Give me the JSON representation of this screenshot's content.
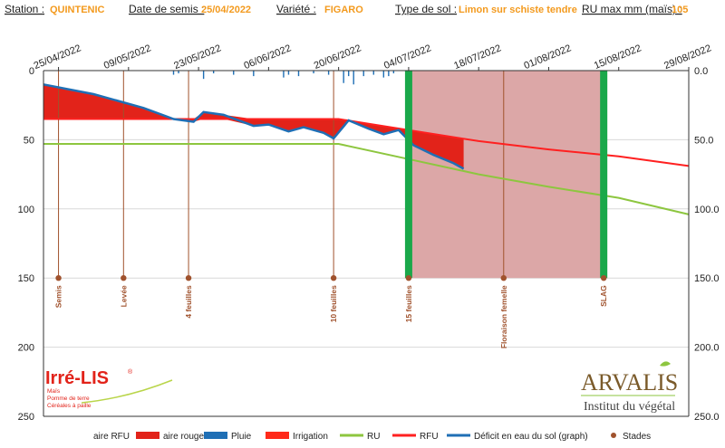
{
  "header": [
    {
      "label": "Station :",
      "value": "QUINTENIC"
    },
    {
      "label": "Date de semis :",
      "value": "25/04/2022"
    },
    {
      "label": "Variété :",
      "value": "FIGARO"
    },
    {
      "label": "Type de sol :",
      "value": "Limon sur schiste tendre"
    },
    {
      "label": "RU max mm (maïs) :",
      "value": "105"
    }
  ],
  "logos": {
    "irre_main": "Irré-LIS",
    "irre_reg": "®",
    "irre_lines": [
      "Maïs",
      "Pomme de terre",
      "Céréales à paille"
    ],
    "arvalis_main": "ARVALIS",
    "arvalis_sub": "Institut du végétal"
  },
  "chart_data": {
    "type": "line",
    "x_start": "2022-04-22",
    "x_end": "2022-08-29",
    "x_ticks": [
      "25/04/2022",
      "09/05/2022",
      "23/05/2022",
      "06/06/2022",
      "20/06/2022",
      "04/07/2022",
      "18/07/2022",
      "01/08/2022",
      "15/08/2022",
      "29/08/2022"
    ],
    "y_left_ticks": [
      "0",
      "50",
      "100",
      "150",
      "200",
      "250"
    ],
    "y_right_ticks": [
      "0.0",
      "50.0",
      "100.0",
      "150.0",
      "200.0",
      "250.0"
    ],
    "ylim": [
      0,
      250
    ],
    "y_inverted": true,
    "grid": true,
    "legend_position": "bottom",
    "colors": {
      "aire_rfu": "#ffffff",
      "aire_rouge": "#e2231a",
      "pluie": "#1f6fb5",
      "irrigation": "#ff2a1a",
      "ru": "#8dc63f",
      "rfu": "#ff2020",
      "deficit": "#1f6fb5",
      "stades": "#a0522d",
      "highlight": "#dca7a7",
      "highlight_bar": "#1aa84a"
    },
    "legend": [
      "aire RFU",
      "aire rouge",
      "Pluie",
      "Irrigation",
      "RU",
      "RFU",
      "Déficit en eau du sol (graph)",
      "Stades"
    ],
    "series": [
      {
        "name": "RU",
        "dates": [
          "2022-04-22",
          "2022-06-20",
          "2022-07-04",
          "2022-07-18",
          "2022-08-01",
          "2022-08-15",
          "2022-08-29"
        ],
        "values": [
          53,
          53,
          64,
          75,
          84,
          92,
          104
        ]
      },
      {
        "name": "RFU",
        "dates": [
          "2022-04-22",
          "2022-06-20",
          "2022-07-04",
          "2022-07-18",
          "2022-08-01",
          "2022-08-15",
          "2022-08-29"
        ],
        "values": [
          35,
          35,
          43,
          51,
          57,
          62,
          69
        ]
      },
      {
        "name": "Déficit en eau du sol (graph)",
        "dates": [
          "2022-04-22",
          "2022-05-02",
          "2022-05-12",
          "2022-05-18",
          "2022-05-22",
          "2022-05-24",
          "2022-05-28",
          "2022-06-03",
          "2022-06-06",
          "2022-06-10",
          "2022-06-13",
          "2022-06-17",
          "2022-06-19",
          "2022-06-22",
          "2022-06-26",
          "2022-06-29",
          "2022-07-02",
          "2022-07-05",
          "2022-07-09",
          "2022-07-13",
          "2022-07-15"
        ],
        "values": [
          10,
          17,
          27,
          35,
          37,
          30,
          32,
          40,
          39,
          44,
          41,
          45,
          49,
          36,
          42,
          46,
          43,
          54,
          61,
          67,
          71
        ]
      }
    ],
    "rfu_red_area_until": "2022-07-15",
    "rain": [
      {
        "date": "2022-05-18",
        "mm": 3
      },
      {
        "date": "2022-05-19",
        "mm": 2
      },
      {
        "date": "2022-05-24",
        "mm": 6
      },
      {
        "date": "2022-05-26",
        "mm": 2
      },
      {
        "date": "2022-05-30",
        "mm": 3
      },
      {
        "date": "2022-06-03",
        "mm": 4
      },
      {
        "date": "2022-06-09",
        "mm": 5
      },
      {
        "date": "2022-06-10",
        "mm": 3
      },
      {
        "date": "2022-06-12",
        "mm": 4
      },
      {
        "date": "2022-06-15",
        "mm": 2
      },
      {
        "date": "2022-06-18",
        "mm": 3
      },
      {
        "date": "2022-06-21",
        "mm": 9
      },
      {
        "date": "2022-06-22",
        "mm": 4
      },
      {
        "date": "2022-06-23",
        "mm": 10
      },
      {
        "date": "2022-06-25",
        "mm": 4
      },
      {
        "date": "2022-06-27",
        "mm": 3
      },
      {
        "date": "2022-06-29",
        "mm": 5
      },
      {
        "date": "2022-06-30",
        "mm": 4
      },
      {
        "date": "2022-07-01",
        "mm": 2
      },
      {
        "date": "2022-07-04",
        "mm": 2
      }
    ],
    "highlight_period": {
      "start": "2022-07-04",
      "end": "2022-08-12"
    },
    "highlight_bars": [
      "2022-07-04",
      "2022-08-12"
    ],
    "stages": [
      {
        "label": "Semis",
        "date": "2022-04-25"
      },
      {
        "label": "Levée",
        "date": "2022-05-08"
      },
      {
        "label": "4 feuilles",
        "date": "2022-05-21"
      },
      {
        "label": "10 feuilles",
        "date": "2022-06-19"
      },
      {
        "label": "15 feuilles",
        "date": "2022-07-04"
      },
      {
        "label": "Floraison femelle",
        "date": "2022-07-23"
      },
      {
        "label": "SLAG",
        "date": "2022-08-12"
      }
    ]
  }
}
